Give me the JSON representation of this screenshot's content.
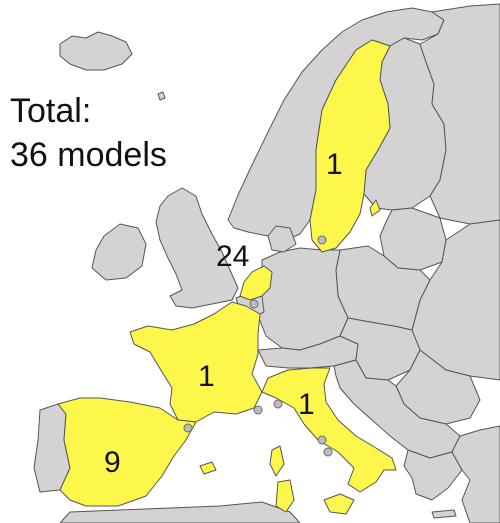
{
  "total": {
    "line1": "Total:",
    "line2": "36 models"
  },
  "countries": {
    "sweden": {
      "name": "Sweden",
      "models": "1"
    },
    "netherlands": {
      "name": "Netherlands",
      "models": "24"
    },
    "france": {
      "name": "France",
      "models": "1"
    },
    "italy": {
      "name": "Italy",
      "models": "1"
    },
    "spain": {
      "name": "Spain",
      "models": "9"
    }
  },
  "colors": {
    "land": "#d3d3d3",
    "highlight": "#fdf64b",
    "border": "#555555",
    "water": "#ffffff"
  }
}
